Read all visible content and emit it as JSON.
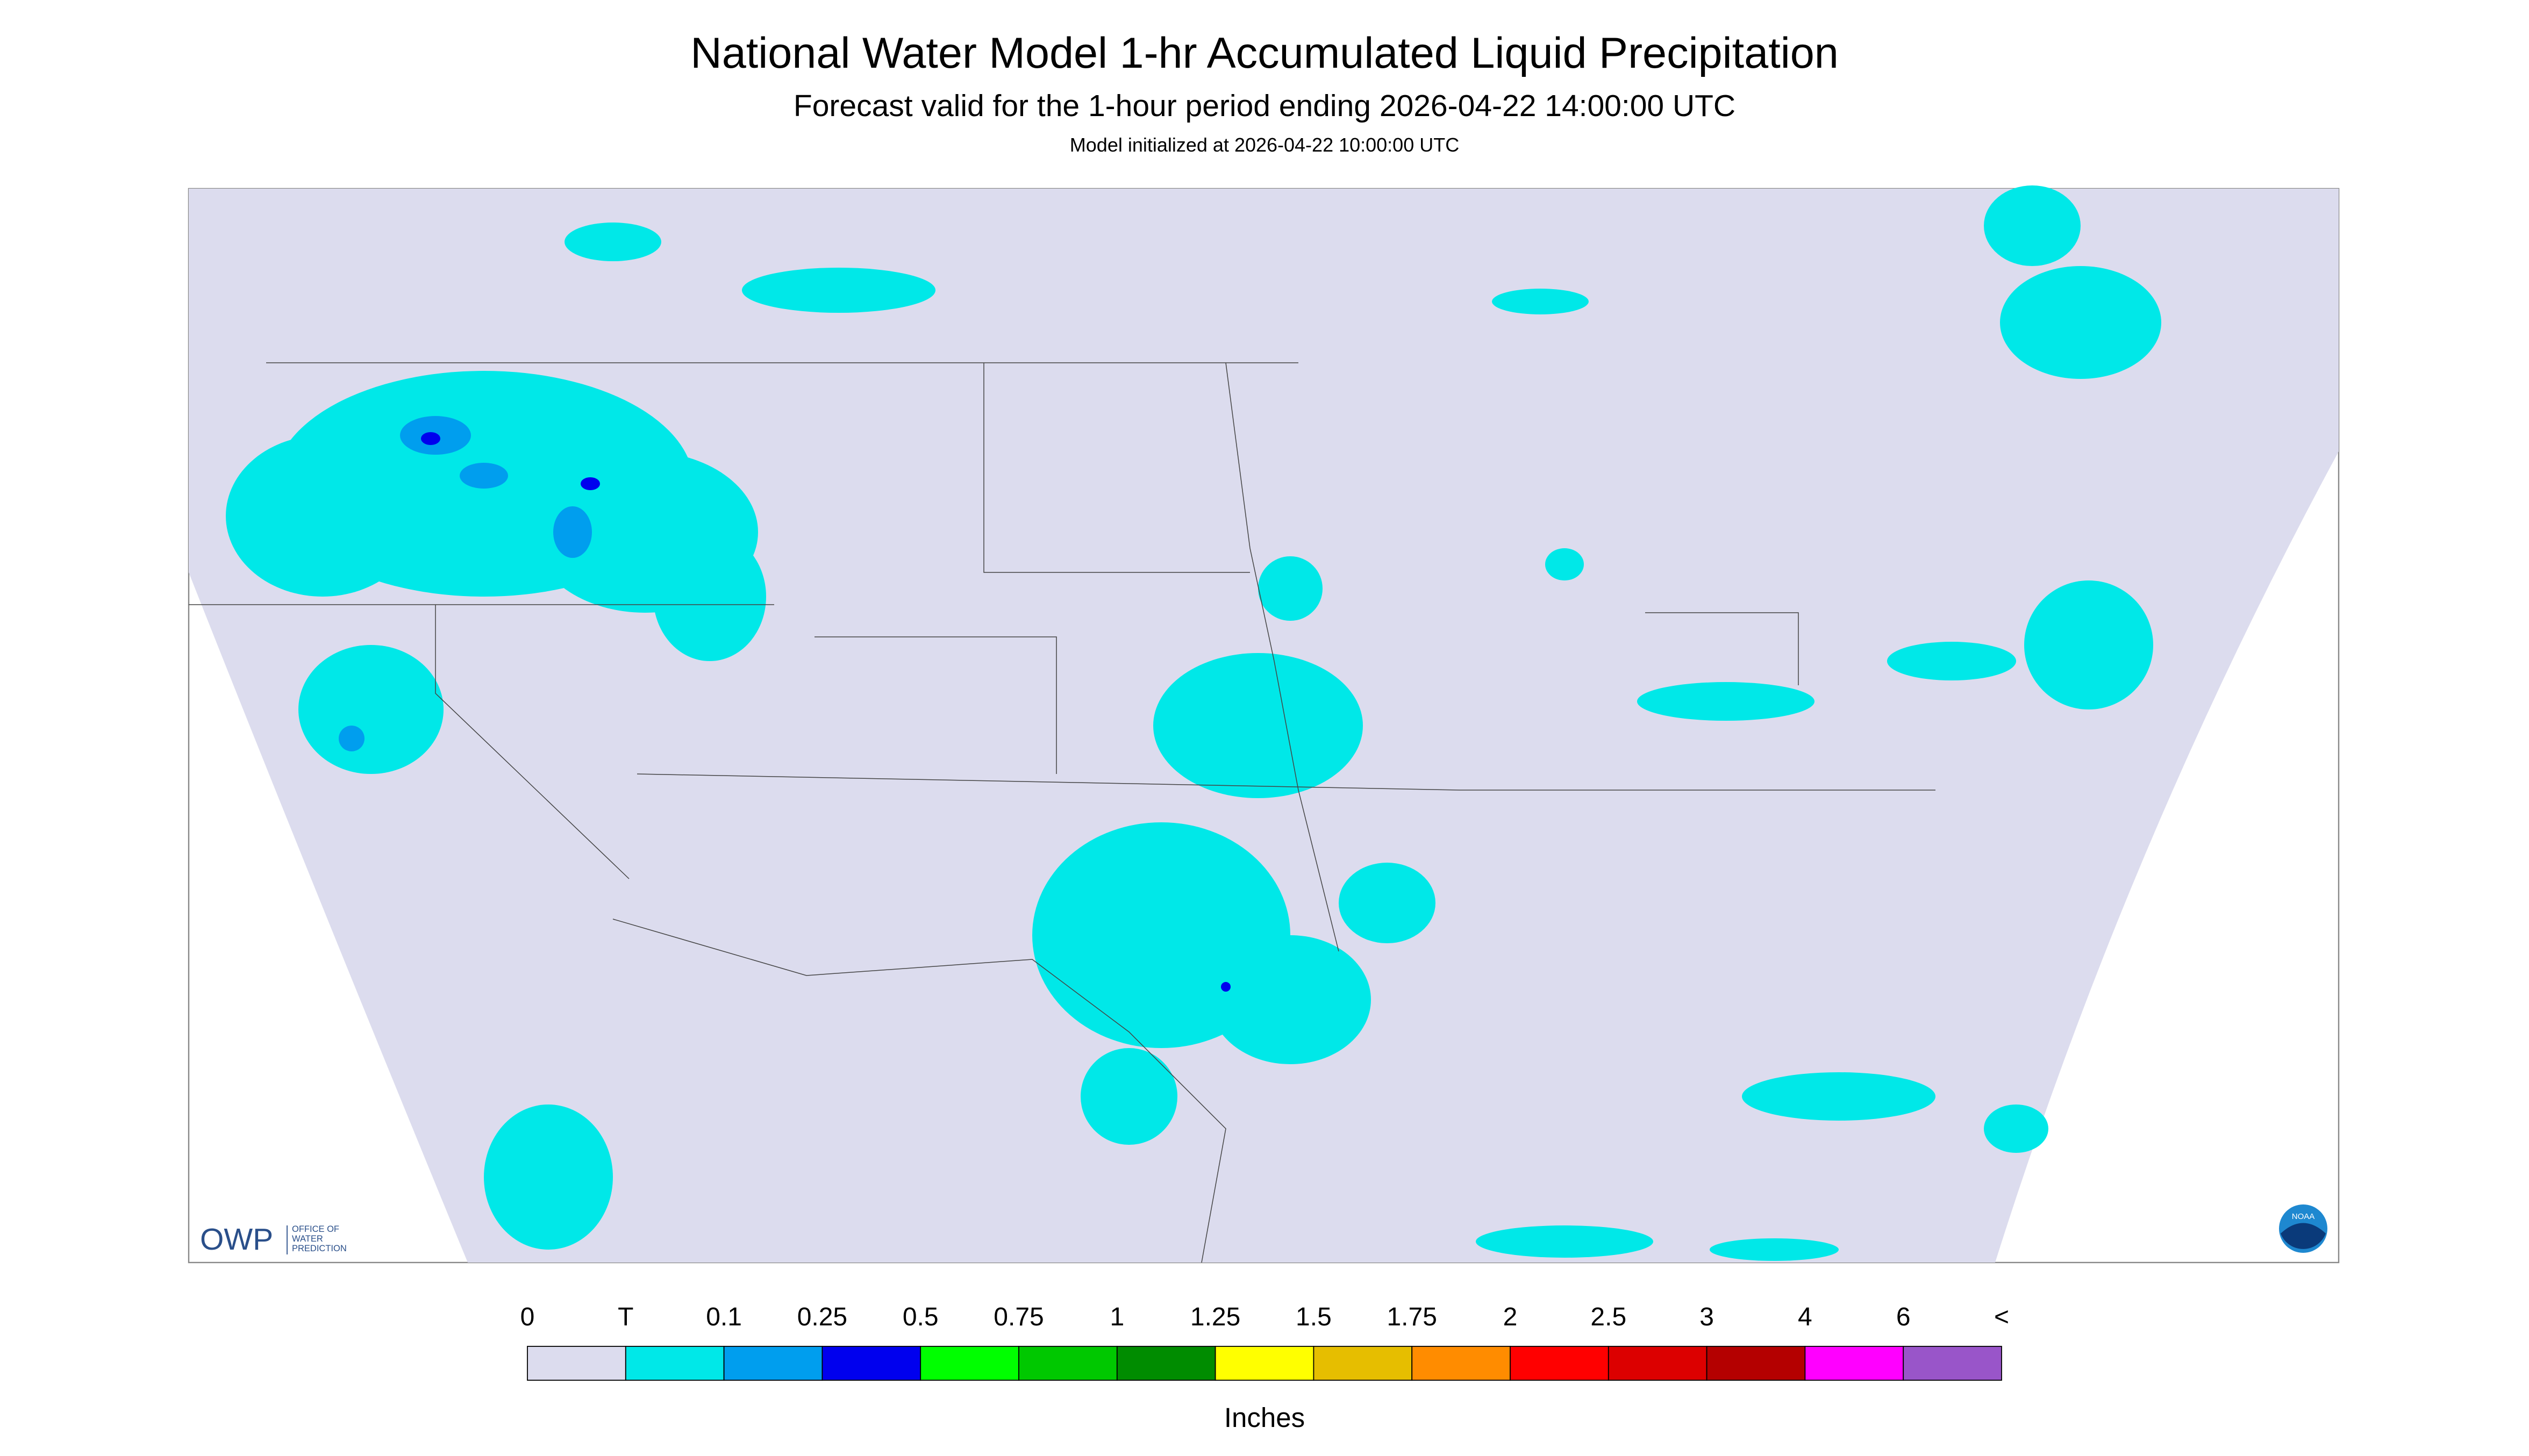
{
  "header": {
    "title": "National Water Model 1-hr Accumulated Liquid Precipitation",
    "subtitle": "Forecast valid for the 1-hour period ending 2026-04-22 14:00:00 UTC",
    "init": "Model initialized at 2026-04-22 10:00:00 UTC"
  },
  "legend": {
    "labels": [
      "0",
      "T",
      "0.1",
      "0.25",
      "0.5",
      "0.75",
      "1",
      "1.25",
      "1.5",
      "1.75",
      "2",
      "2.5",
      "3",
      "4",
      "6",
      "<"
    ],
    "colors": [
      "#dcdcee",
      "#00e8e8",
      "#009eee",
      "#0000ee",
      "#00ff00",
      "#00c800",
      "#008c00",
      "#ffff00",
      "#e6be00",
      "#ff8c00",
      "#ff0000",
      "#dc0000",
      "#b40000",
      "#ff00ff",
      "#9955c9"
    ],
    "unit": "Inches"
  },
  "logos": {
    "owp": "OWP",
    "owp_name": [
      "OFFICE OF",
      "WATER",
      "PREDICTION"
    ],
    "noaa": "NOAA"
  }
}
